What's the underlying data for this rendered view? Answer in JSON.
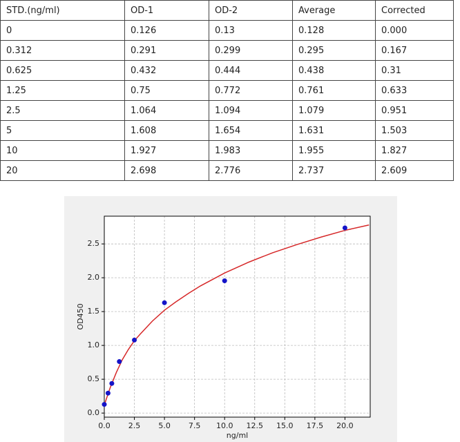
{
  "table": {
    "header": [
      "STD.(ng/ml)",
      "OD-1",
      "OD-2",
      "Average",
      "Corrected"
    ],
    "rows": [
      [
        "0",
        "0.126",
        "0.13",
        "0.128",
        "0.000"
      ],
      [
        "0.312",
        "0.291",
        "0.299",
        "0.295",
        "0.167"
      ],
      [
        "0.625",
        "0.432",
        "0.444",
        "0.438",
        "0.31"
      ],
      [
        "1.25",
        "0.75",
        "0.772",
        "0.761",
        "0.633"
      ],
      [
        "2.5",
        "1.064",
        "1.094",
        "1.079",
        "0.951"
      ],
      [
        "5",
        "1.608",
        "1.654",
        "1.631",
        "1.503"
      ],
      [
        "10",
        "1.927",
        "1.983",
        "1.955",
        "1.827"
      ],
      [
        "20",
        "2.698",
        "2.776",
        "2.737",
        "2.609"
      ]
    ]
  },
  "chart_data": {
    "type": "scatter",
    "x_label": "ng/ml",
    "y_label": "OD450",
    "series": [
      {
        "mode": "markers",
        "color": "#1414c8",
        "x": [
          0,
          0.312,
          0.625,
          1.25,
          2.5,
          5,
          10,
          20
        ],
        "values": [
          0.128,
          0.295,
          0.438,
          0.761,
          1.079,
          1.631,
          1.955,
          2.737
        ]
      },
      {
        "mode": "line",
        "color": "#d62728",
        "x": [
          0,
          0.5,
          1,
          1.5,
          2,
          2.5,
          3,
          4,
          5,
          6,
          7,
          8,
          10,
          12,
          14,
          16,
          18,
          20,
          22
        ],
        "values": [
          0.12,
          0.38,
          0.6,
          0.79,
          0.94,
          1.07,
          1.17,
          1.36,
          1.52,
          1.65,
          1.77,
          1.88,
          2.07,
          2.23,
          2.37,
          2.49,
          2.6,
          2.7,
          2.78
        ]
      }
    ],
    "xlim": [
      0,
      22.1
    ],
    "ylim": [
      -0.06,
      2.91
    ],
    "xticks": [
      {
        "value": 0,
        "label": "0.0"
      },
      {
        "value": 2.5,
        "label": "2.5"
      },
      {
        "value": 5,
        "label": "5.0"
      },
      {
        "value": 7.5,
        "label": "7.5"
      },
      {
        "value": 10,
        "label": "10.0"
      },
      {
        "value": 12.5,
        "label": "12.5"
      },
      {
        "value": 15,
        "label": "15.0"
      },
      {
        "value": 17.5,
        "label": "17.5"
      },
      {
        "value": 20,
        "label": "20.0"
      }
    ],
    "yticks": [
      {
        "value": 0,
        "label": "0.0"
      },
      {
        "value": 0.5,
        "label": "0.5"
      },
      {
        "value": 1,
        "label": "1.0"
      },
      {
        "value": 1.5,
        "label": "1.5"
      },
      {
        "value": 2,
        "label": "2.0"
      },
      {
        "value": 2.5,
        "label": "2.5"
      }
    ],
    "grid": true
  }
}
